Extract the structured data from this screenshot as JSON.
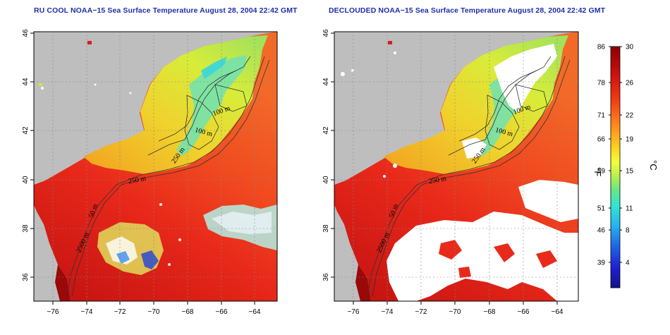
{
  "titles": {
    "left": "RU COOL NOAA−15 Sea Surface Temperature August 28, 2004 22:42 GMT",
    "right": "DECLOUDED NOAA−15 Sea Surface Temperature August 28, 2004 22:42 GMT"
  },
  "map": {
    "lon_ticks": [
      "−76",
      "−74",
      "−72",
      "−70",
      "−68",
      "−66",
      "−64"
    ],
    "lat_ticks": [
      "36",
      "38",
      "40",
      "42",
      "44",
      "46"
    ],
    "contour_labels": {
      "left": [
        "100 m",
        "100 m",
        "250 m",
        "250 m",
        "50 m",
        "2500 m"
      ],
      "right": [
        "100 m",
        "100 m",
        "250 m",
        "250 m",
        "50 m",
        "2500 m"
      ]
    }
  },
  "colorbar": {
    "fahrenheit_ticks": [
      "86",
      "78",
      "71",
      "66",
      "59",
      "51",
      "46",
      "39"
    ],
    "celsius_ticks": [
      "30",
      "26",
      "22",
      "19",
      "15",
      "11",
      "8",
      "4"
    ],
    "fahrenheit_unit": "°F",
    "celsius_unit": "°C",
    "colors": [
      "#8b0000",
      "#d21010",
      "#f03c14",
      "#ff8c1e",
      "#ffd21e",
      "#f0ff3c",
      "#b4f050",
      "#64e68c",
      "#32e6d2",
      "#28b4f0",
      "#1e64e6",
      "#1e1ed2",
      "#14148c"
    ]
  },
  "colors": {
    "title": "#1f2fa8",
    "land": "#bebebe",
    "cloud": "#ffffff"
  }
}
